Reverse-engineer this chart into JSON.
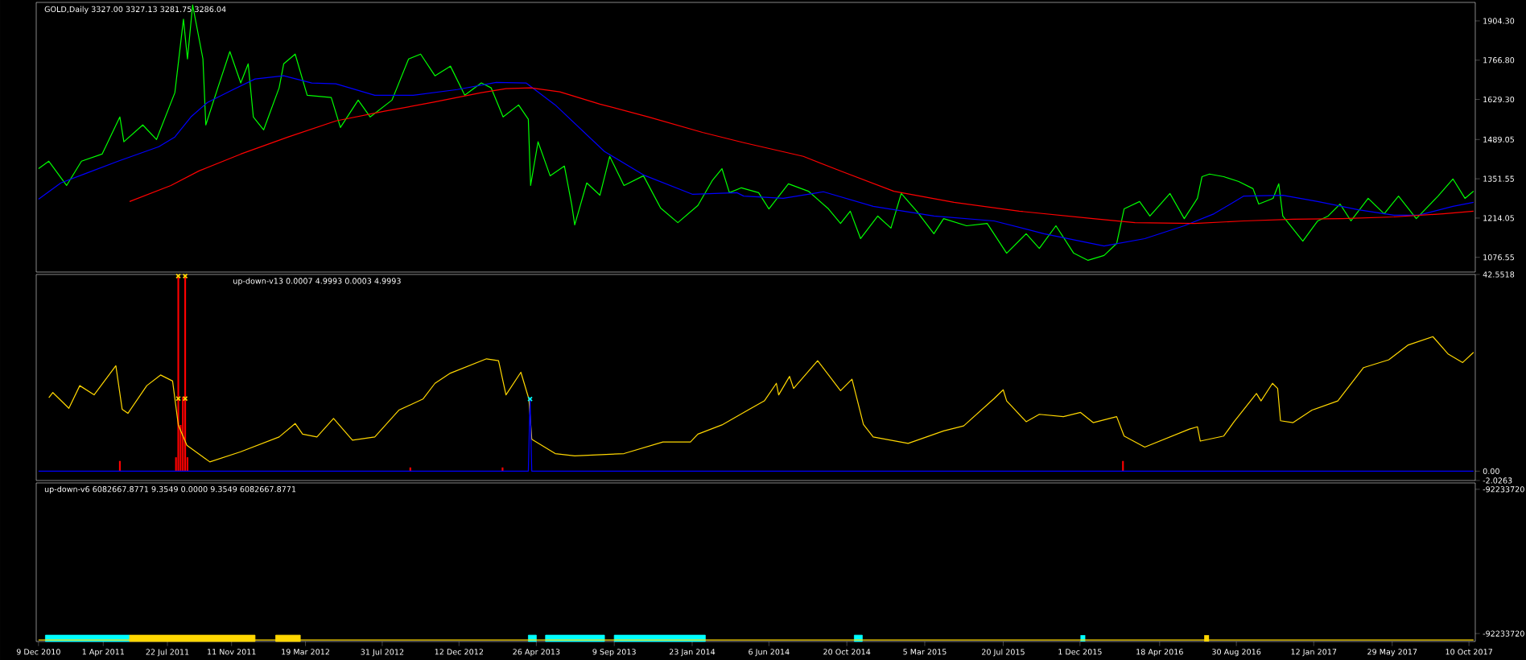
{
  "chart_data": [
    {
      "type": "line",
      "title": "GOLD,Daily 3327.00 3327.13 3281.75 3286.04",
      "xlim": [
        "2010-12-05",
        "2017-10-21"
      ],
      "ylim": [
        1025,
        1969
      ],
      "tick_labels": "y",
      "yticks": [
        {
          "value": 1904.3,
          "label": "1904.30"
        },
        {
          "value": 1766.8,
          "label": "1766.80"
        },
        {
          "value": 1629.3,
          "label": "1629.30"
        },
        {
          "value": 1489.05,
          "label": "1489.05"
        },
        {
          "value": 1351.55,
          "label": "1351.55"
        },
        {
          "value": 1214.05,
          "label": "1214.05"
        },
        {
          "value": 1076.55,
          "label": "1076.55"
        }
      ],
      "series": [
        {
          "color": "#00ff00",
          "x": [
            "2010-12-09",
            "2010-12-27",
            "2011-01-27",
            "2011-02-22",
            "2011-03-30",
            "2011-04-30",
            "2011-05-07",
            "2011-06-09",
            "2011-07-03",
            "2011-08-04",
            "2011-08-19",
            "2011-08-26",
            "2011-09-04",
            "2011-09-22",
            "2011-09-27",
            "2011-10-18",
            "2011-11-08",
            "2011-11-27",
            "2011-12-10",
            "2011-12-19",
            "2012-01-06",
            "2012-02-02",
            "2012-02-10",
            "2012-03-01",
            "2012-03-22",
            "2012-05-03",
            "2012-05-19",
            "2012-06-19",
            "2012-07-10",
            "2012-08-17",
            "2012-09-15",
            "2012-10-06",
            "2012-10-31",
            "2012-11-27",
            "2012-12-22",
            "2013-01-20",
            "2013-02-06",
            "2013-02-27",
            "2013-03-26",
            "2013-04-12",
            "2013-04-16",
            "2013-04-29",
            "2013-05-20",
            "2013-06-14",
            "2013-06-27",
            "2013-07-02",
            "2013-07-23",
            "2013-08-15",
            "2013-09-01",
            "2013-09-26",
            "2013-10-30",
            "2013-11-29",
            "2013-12-29",
            "2014-02-02",
            "2014-02-27",
            "2014-03-16",
            "2014-03-29",
            "2014-04-19",
            "2014-05-19",
            "2014-06-06",
            "2014-07-10",
            "2014-08-14",
            "2014-09-18",
            "2014-10-09",
            "2014-10-26",
            "2014-11-13",
            "2014-12-13",
            "2015-01-05",
            "2015-01-23",
            "2015-02-19",
            "2015-03-21",
            "2015-04-07",
            "2015-05-17",
            "2015-06-22",
            "2015-07-26",
            "2015-08-29",
            "2015-09-21",
            "2015-10-20",
            "2015-11-20",
            "2015-12-15",
            "2016-01-12",
            "2016-02-03",
            "2016-02-16",
            "2016-03-14",
            "2016-04-01",
            "2016-05-06",
            "2016-05-31",
            "2016-06-23",
            "2016-07-01",
            "2016-07-14",
            "2016-08-08",
            "2016-09-03",
            "2016-09-28",
            "2016-10-08",
            "2016-11-02",
            "2016-11-12",
            "2016-11-19",
            "2016-12-24",
            "2017-01-19",
            "2017-02-06",
            "2017-02-27",
            "2017-03-18",
            "2017-04-17",
            "2017-05-15",
            "2017-06-09",
            "2017-07-10",
            "2017-08-17",
            "2017-09-12",
            "2017-10-03",
            "2017-10-18"
          ],
          "values": [
            1387,
            1413,
            1328,
            1413,
            1438,
            1568,
            1481,
            1540,
            1489,
            1653,
            1910,
            1771,
            1960,
            1771,
            1540,
            1670,
            1797,
            1687,
            1754,
            1568,
            1523,
            1670,
            1754,
            1788,
            1644,
            1636,
            1531,
            1627,
            1568,
            1627,
            1771,
            1788,
            1712,
            1746,
            1644,
            1687,
            1670,
            1568,
            1610,
            1560,
            1328,
            1481,
            1362,
            1396,
            1258,
            1190,
            1337,
            1294,
            1430,
            1328,
            1362,
            1249,
            1198,
            1258,
            1345,
            1387,
            1303,
            1320,
            1303,
            1246,
            1334,
            1308,
            1246,
            1195,
            1238,
            1142,
            1221,
            1179,
            1300,
            1238,
            1159,
            1212,
            1187,
            1195,
            1091,
            1159,
            1108,
            1187,
            1091,
            1066,
            1083,
            1125,
            1246,
            1272,
            1221,
            1300,
            1212,
            1283,
            1359,
            1368,
            1359,
            1342,
            1317,
            1263,
            1283,
            1334,
            1221,
            1133,
            1204,
            1221,
            1263,
            1204,
            1283,
            1229,
            1291,
            1212,
            1291,
            1351,
            1283,
            1308
          ]
        },
        {
          "color": "#0000ff",
          "x": [
            "2010-12-09",
            "2011-01-17",
            "2011-03-01",
            "2011-04-27",
            "2011-07-07",
            "2011-08-04",
            "2011-09-01",
            "2011-09-30",
            "2011-11-11",
            "2011-12-22",
            "2012-02-10",
            "2012-03-30",
            "2012-05-11",
            "2012-07-18",
            "2012-09-23",
            "2012-12-09",
            "2013-02-15",
            "2013-04-08",
            "2013-05-29",
            "2013-08-23",
            "2013-10-30",
            "2014-01-24",
            "2014-04-11",
            "2014-04-23",
            "2014-07-01",
            "2014-09-09",
            "2014-12-05",
            "2015-03-21",
            "2015-07-04",
            "2015-09-29",
            "2016-01-12",
            "2016-03-23",
            "2016-05-31",
            "2016-07-22",
            "2016-09-12",
            "2016-11-19",
            "2017-01-19",
            "2017-03-31",
            "2017-06-01",
            "2017-07-14",
            "2017-09-12",
            "2017-10-18"
          ],
          "values": [
            1280,
            1337,
            1370,
            1413,
            1464,
            1498,
            1568,
            1619,
            1661,
            1701,
            1712,
            1687,
            1684,
            1644,
            1644,
            1664,
            1689,
            1687,
            1610,
            1447,
            1365,
            1297,
            1303,
            1291,
            1283,
            1306,
            1255,
            1221,
            1204,
            1159,
            1116,
            1142,
            1187,
            1229,
            1291,
            1294,
            1272,
            1243,
            1224,
            1224,
            1255,
            1269
          ]
        },
        {
          "color": "#ff0000",
          "x": [
            "2011-05-17",
            "2011-07-28",
            "2011-09-15",
            "2011-11-27",
            "2012-02-18",
            "2012-05-11",
            "2012-08-04",
            "2012-10-27",
            "2013-01-20",
            "2013-03-04",
            "2013-04-16",
            "2013-06-06",
            "2013-08-15",
            "2013-11-08",
            "2014-02-10",
            "2014-04-23",
            "2014-08-05",
            "2014-10-13",
            "2015-01-10",
            "2015-04-25",
            "2015-08-17",
            "2015-12-24",
            "2016-03-06",
            "2016-06-18",
            "2016-09-12",
            "2016-12-07",
            "2017-03-03",
            "2017-06-01",
            "2017-08-26",
            "2017-10-18"
          ],
          "values": [
            1272,
            1328,
            1379,
            1438,
            1498,
            1554,
            1588,
            1619,
            1653,
            1667,
            1670,
            1656,
            1613,
            1568,
            1514,
            1478,
            1430,
            1376,
            1308,
            1269,
            1238,
            1212,
            1198,
            1195,
            1204,
            1210,
            1212,
            1218,
            1229,
            1238
          ]
        }
      ]
    },
    {
      "type": "line",
      "title": "up-down-v13 0.0007 4.9993 0.0003 4.9993",
      "xlim": [
        "2010-12-05",
        "2017-10-21"
      ],
      "ylim": [
        -2.0263,
        42.5518
      ],
      "tick_labels": "y",
      "yticks": [
        42.5518,
        {
          "value": 0,
          "label": "0.00"
        },
        -2.0263
      ],
      "series": [
        {
          "color": "#ffd700",
          "x": [
            "2010-12-27",
            "2011-01-03",
            "2011-01-31",
            "2011-02-19",
            "2011-03-16",
            "2011-04-23",
            "2011-05-04",
            "2011-05-14",
            "2011-06-16",
            "2011-07-10",
            "2011-07-31",
            "2011-08-10",
            "2011-08-25",
            "2011-10-04",
            "2011-11-27",
            "2012-02-02",
            "2012-03-01",
            "2012-03-14",
            "2012-04-08",
            "2012-05-07",
            "2012-06-09",
            "2012-07-18",
            "2012-08-29",
            "2012-10-10",
            "2012-10-31",
            "2012-11-27",
            "2013-01-29",
            "2013-02-19",
            "2013-03-04",
            "2013-03-30",
            "2013-04-13",
            "2013-04-18",
            "2013-05-29",
            "2013-07-02",
            "2013-09-26",
            "2013-12-03",
            "2014-01-20",
            "2014-02-02",
            "2014-03-16",
            "2014-04-23",
            "2014-05-29",
            "2014-06-19",
            "2014-06-23",
            "2014-07-12",
            "2014-07-19",
            "2014-08-30",
            "2014-10-09",
            "2014-10-29",
            "2014-11-18",
            "2014-12-05",
            "2015-02-04",
            "2015-04-07",
            "2015-05-12",
            "2015-07-04",
            "2015-07-20",
            "2015-07-26",
            "2015-08-29",
            "2015-09-21",
            "2015-11-02",
            "2015-12-02",
            "2015-12-24",
            "2016-02-03",
            "2016-02-16",
            "2016-03-23",
            "2016-06-09",
            "2016-06-23",
            "2016-06-28",
            "2016-08-08",
            "2016-08-26",
            "2016-10-04",
            "2016-10-12",
            "2016-11-01",
            "2016-11-10",
            "2016-11-15",
            "2016-12-07",
            "2017-01-09",
            "2017-02-23",
            "2017-04-09",
            "2017-05-23",
            "2017-06-26",
            "2017-08-08",
            "2017-09-04",
            "2017-09-29",
            "2017-10-18"
          ],
          "values": [
            15.9,
            17.0,
            13.6,
            18.5,
            16.5,
            22.8,
            13.4,
            12.5,
            18.5,
            20.8,
            19.5,
            10.0,
            5.6,
            2.0,
            4.2,
            7.4,
            10.3,
            8.0,
            7.4,
            11.4,
            6.7,
            7.4,
            13.2,
            15.6,
            19.0,
            21.2,
            24.3,
            23.9,
            16.5,
            21.4,
            15.6,
            6.9,
            3.8,
            3.3,
            3.8,
            6.3,
            6.3,
            8.0,
            10.0,
            12.7,
            15.2,
            19.0,
            16.5,
            20.5,
            17.9,
            23.9,
            17.4,
            19.9,
            10.1,
            7.4,
            6.0,
            8.7,
            9.8,
            15.7,
            17.6,
            15.2,
            10.7,
            12.3,
            11.8,
            12.7,
            10.5,
            11.8,
            7.6,
            5.2,
            9.1,
            9.6,
            6.5,
            7.6,
            10.7,
            16.8,
            15.2,
            19.0,
            17.9,
            10.9,
            10.5,
            13.2,
            15.2,
            22.4,
            24.1,
            27.3,
            29.1,
            25.3,
            23.5,
            25.7
          ]
        },
        {
          "type": "bar",
          "color": "#ff0000",
          "x": [
            "2011-04-30",
            "2011-08-06",
            "2011-08-10",
            "2011-08-14",
            "2011-08-18",
            "2011-08-22",
            "2011-08-26",
            "2012-09-18",
            "2013-02-26",
            "2016-02-14"
          ],
          "values": [
            2.2,
            3,
            42.2,
            10,
            16.1,
            42.2,
            3,
            0.8,
            0.8,
            2.2
          ]
        },
        {
          "color": "#0000ff",
          "x": [
            "2010-12-09",
            "2013-04-12",
            "2013-04-15",
            "2013-04-18",
            "2017-10-18"
          ],
          "values": [
            0,
            0,
            15.6,
            0,
            0
          ]
        },
        {
          "type": "scatter",
          "marker": "cross",
          "color": "#ffd700",
          "x": [
            "2011-08-10",
            "2011-08-22",
            "2011-08-10",
            "2011-08-22"
          ],
          "values": [
            42.2,
            42.2,
            15.7,
            15.7
          ]
        },
        {
          "type": "scatter",
          "marker": "cross",
          "color": "#00ffff",
          "x": [
            "2013-04-15"
          ],
          "values": [
            15.6
          ]
        }
      ]
    },
    {
      "type": "line",
      "title": "up-down-v6 6082667.8771 9.3549 0.0000 9.3549 6082667.8771",
      "xlim": [
        "2010-12-05",
        "2017-10-21"
      ],
      "ylim": [
        -92233720.5,
        -92233719.5
      ],
      "yticks": [
        {
          "value": -92233719.54,
          "label": "-92233720"
        },
        {
          "value": -92233720.45,
          "label": "-92233720"
        }
      ],
      "xticks": [
        {
          "value": "2010-12-09",
          "label": "9 Dec 2010"
        },
        {
          "value": "2011-04-01",
          "label": "1 Apr 2011"
        },
        {
          "value": "2011-07-22",
          "label": "22 Jul 2011"
        },
        {
          "value": "2011-11-11",
          "label": "11 Nov 2011"
        },
        {
          "value": "2012-03-19",
          "label": "19 Mar 2012"
        },
        {
          "value": "2012-07-31",
          "label": "31 Jul 2012"
        },
        {
          "value": "2012-12-12",
          "label": "12 Dec 2012"
        },
        {
          "value": "2013-04-26",
          "label": "26 Apr 2013"
        },
        {
          "value": "2013-09-09",
          "label": "9 Sep 2013"
        },
        {
          "value": "2014-01-23",
          "label": "23 Jan 2014"
        },
        {
          "value": "2014-06-06",
          "label": "6 Jun 2014"
        },
        {
          "value": "2014-10-20",
          "label": "20 Oct 2014"
        },
        {
          "value": "2015-03-05",
          "label": "5 Mar 2015"
        },
        {
          "value": "2015-07-20",
          "label": "20 Jul 2015"
        },
        {
          "value": "2015-12-01",
          "label": "1 Dec 2015"
        },
        {
          "value": "2016-04-18",
          "label": "18 Apr 2016"
        },
        {
          "value": "2016-08-30",
          "label": "30 Aug 2016"
        },
        {
          "value": "2017-01-12",
          "label": "12 Jan 2017"
        },
        {
          "value": "2017-05-29",
          "label": "29 May 2017"
        },
        {
          "value": "2017-10-10",
          "label": "10 Oct 2017"
        }
      ],
      "series": [
        {
          "color": "#ffd700",
          "x": [
            "2010-12-09",
            "2017-10-18"
          ],
          "values": [
            -92233720.49,
            -92233720.49
          ]
        },
        {
          "type": "area",
          "color": "#00ffff",
          "x": [
            "2010-12-21",
            "2011-05-17"
          ],
          "values": [
            -92233720.46,
            -92233720.46
          ]
        },
        {
          "type": "area",
          "color": "#ffd700",
          "x": [
            "2011-05-17",
            "2011-12-22"
          ],
          "values": [
            -92233720.46,
            -92233720.46
          ]
        },
        {
          "type": "area",
          "color": "#ffd700",
          "x": [
            "2012-01-27",
            "2012-03-10"
          ],
          "values": [
            -92233720.46,
            -92233720.46
          ]
        },
        {
          "type": "area",
          "color": "#00ffff",
          "x": [
            "2013-04-12",
            "2013-04-26"
          ],
          "values": [
            -92233720.46,
            -92233720.46
          ]
        },
        {
          "type": "area",
          "color": "#00ffff",
          "x": [
            "2013-05-12",
            "2013-08-23"
          ],
          "values": [
            -92233720.46,
            -92233720.46
          ]
        },
        {
          "type": "area",
          "color": "#00ffff",
          "x": [
            "2013-09-09",
            "2014-02-15"
          ],
          "values": [
            -92233720.46,
            -92233720.46
          ]
        },
        {
          "type": "area",
          "color": "#00ffff",
          "x": [
            "2014-11-02",
            "2014-11-16"
          ],
          "values": [
            -92233720.46,
            -92233720.46
          ]
        },
        {
          "type": "bar",
          "color": "#00ffff",
          "x": [
            "2015-12-06"
          ],
          "base": [
            -92233720.5
          ],
          "values": [
            0.04
          ]
        },
        {
          "type": "bar",
          "color": "#ffd700",
          "x": [
            "2016-07-09"
          ],
          "base": [
            -92233720.5
          ],
          "values": [
            0.04
          ]
        }
      ]
    }
  ]
}
